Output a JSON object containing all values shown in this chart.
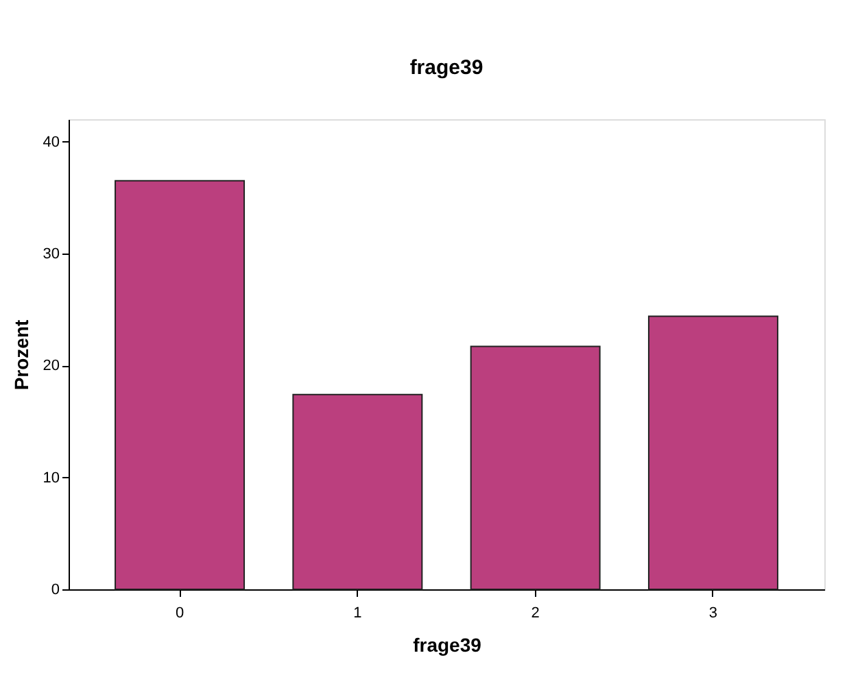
{
  "chart_data": {
    "type": "bar",
    "title": "frage39",
    "xlabel": "frage39",
    "ylabel": "Prozent",
    "categories": [
      "0",
      "1",
      "2",
      "3"
    ],
    "values": [
      36.5,
      17.4,
      21.7,
      24.4
    ],
    "color": "#bb3f7e",
    "ylim": [
      0,
      42
    ],
    "yticks": [
      0,
      10,
      20,
      30,
      40
    ],
    "grid": false
  }
}
